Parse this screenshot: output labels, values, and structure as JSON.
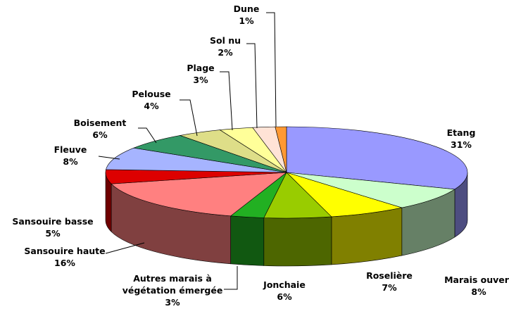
{
  "chart_data": {
    "type": "pie3d",
    "categories": [
      "Etang",
      "Marais ouvert",
      "Roselière",
      "Jonchaie",
      "Autres marais à végétation émergée",
      "Sansouire haute",
      "Sansouire basse",
      "Fleuve",
      "Boisement",
      "Pelouse",
      "Plage",
      "Sol nu",
      "Dune"
    ],
    "values": [
      31,
      8,
      7,
      6,
      3,
      16,
      5,
      8,
      6,
      4,
      3,
      2,
      1
    ],
    "value_labels": [
      "31%",
      "8%",
      "7%",
      "6%",
      "3%",
      "16%",
      "5%",
      "8%",
      "6%",
      "4%",
      "3%",
      "2%",
      "1%"
    ],
    "colors": [
      "#9999ff",
      "#ccffcc",
      "#ffff00",
      "#99cc00",
      "#22b022",
      "#ff8080",
      "#dd0000",
      "#a6b4ff",
      "#339966",
      "#dede88",
      "#ffff99",
      "#ffe3d6",
      "#ff9933"
    ]
  }
}
